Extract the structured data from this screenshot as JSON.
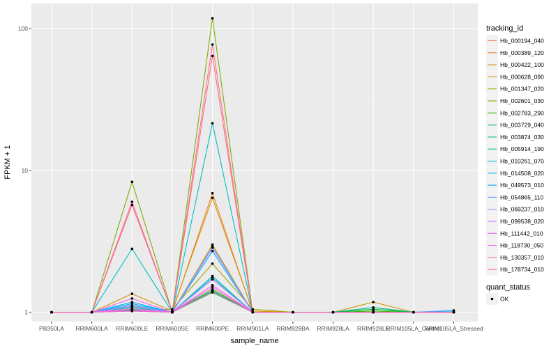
{
  "chart_data": {
    "type": "line",
    "xlabel": "sample_name",
    "ylabel": "FPKM + 1",
    "y_scale": "log10",
    "ylim": [
      0.86,
      150
    ],
    "y_ticks": [
      1,
      10,
      100
    ],
    "y_tick_labels": [
      "1",
      "10",
      "100"
    ],
    "grid": true,
    "legend_position": "right",
    "categories": [
      "PB350LA",
      "RRIM600LA",
      "RRIM600LE",
      "RRIM600SE",
      "RRIM600PE",
      "RRIM901LA",
      "RRIM928BA",
      "RRIM928LA",
      "RRIM928LE",
      "RRIM105LA_Control",
      "RRIM105LA_Stressed"
    ],
    "legend_title": "tracking_id",
    "series": [
      {
        "name": "Hb_000194_040",
        "color": "#F8766D",
        "values": [
          1,
          1,
          5.7,
          1,
          64,
          1,
          1,
          1,
          1,
          1,
          1
        ]
      },
      {
        "name": "Hb_000389_120",
        "color": "#EA8331",
        "values": [
          1,
          1,
          1.05,
          1,
          6.9,
          1,
          1,
          1,
          1,
          1,
          1
        ]
      },
      {
        "name": "Hb_000422_100",
        "color": "#D89000",
        "values": [
          1,
          1,
          1.35,
          1.02,
          6.4,
          1.02,
          1,
          1,
          1.18,
          1,
          1
        ]
      },
      {
        "name": "Hb_000628_090",
        "color": "#C09B00",
        "values": [
          1,
          1,
          1.1,
          1,
          3.0,
          1,
          1,
          1,
          1,
          1,
          1
        ]
      },
      {
        "name": "Hb_001347_020",
        "color": "#A3A500",
        "values": [
          1,
          1,
          1.03,
          1.05,
          2.2,
          1.05,
          1,
          1,
          1.05,
          1,
          1
        ]
      },
      {
        "name": "Hb_002601_030",
        "color": "#7CAE00",
        "values": [
          1,
          1,
          8.3,
          1,
          118,
          1,
          1,
          1,
          1,
          1,
          1
        ]
      },
      {
        "name": "Hb_002783_290",
        "color": "#39B600",
        "values": [
          1,
          1,
          1.05,
          1,
          1.45,
          1,
          1,
          1,
          1.02,
          1,
          1
        ]
      },
      {
        "name": "Hb_003729_040",
        "color": "#00BB4E",
        "values": [
          1,
          1,
          1.02,
          1,
          1.38,
          1,
          1,
          1,
          1.05,
          1,
          1
        ]
      },
      {
        "name": "Hb_003874_030",
        "color": "#00BF7D",
        "values": [
          1,
          1,
          1.08,
          1,
          1.42,
          1,
          1,
          1,
          1.08,
          1,
          1
        ]
      },
      {
        "name": "Hb_005914_190",
        "color": "#00C1A3",
        "values": [
          1,
          1,
          1.03,
          1,
          1.8,
          1,
          1,
          1,
          1,
          1,
          1
        ]
      },
      {
        "name": "Hb_010261_070",
        "color": "#00BFC4",
        "values": [
          1,
          1,
          2.8,
          1,
          21.5,
          1,
          1,
          1,
          1,
          1,
          1
        ]
      },
      {
        "name": "Hb_014508_020",
        "color": "#00B8E7",
        "values": [
          1,
          1,
          1.15,
          1,
          1.75,
          1,
          1,
          1,
          1,
          1,
          1.02
        ]
      },
      {
        "name": "Hb_049573_010",
        "color": "#00A9FF",
        "values": [
          1,
          1,
          1.18,
          1,
          2.7,
          1,
          1,
          1,
          1,
          1,
          1
        ]
      },
      {
        "name": "Hb_054865_110",
        "color": "#619CFF",
        "values": [
          1,
          1,
          1.12,
          1,
          2.85,
          1,
          1,
          1,
          1,
          1,
          1.03
        ]
      },
      {
        "name": "Hb_069237_010",
        "color": "#9F8CFF",
        "values": [
          1,
          1,
          1.1,
          1,
          2.9,
          1,
          1,
          1,
          1,
          1,
          1
        ]
      },
      {
        "name": "Hb_099538_020",
        "color": "#C77CFF",
        "values": [
          1,
          1,
          1.06,
          1,
          1.7,
          1,
          1,
          1,
          1,
          1,
          1
        ]
      },
      {
        "name": "Hb_111442_010",
        "color": "#E76BF3",
        "values": [
          1,
          1,
          1.04,
          1,
          1.55,
          1,
          1,
          1,
          1,
          1,
          1
        ]
      },
      {
        "name": "Hb_118730_050",
        "color": "#F564E3",
        "values": [
          1,
          1,
          1.25,
          1,
          1.5,
          1,
          1,
          1,
          1,
          1,
          1
        ]
      },
      {
        "name": "Hb_130357_010",
        "color": "#FF61C3",
        "values": [
          1,
          1,
          1.02,
          1,
          1.4,
          1,
          1,
          1,
          1,
          1,
          1
        ]
      },
      {
        "name": "Hb_178734_010",
        "color": "#FF67A4",
        "values": [
          1,
          1,
          6.0,
          1,
          77,
          1,
          1,
          1,
          1,
          1,
          1
        ]
      }
    ],
    "shape_legend_title": "quant_status",
    "shape_legend_items": [
      "OK"
    ]
  }
}
